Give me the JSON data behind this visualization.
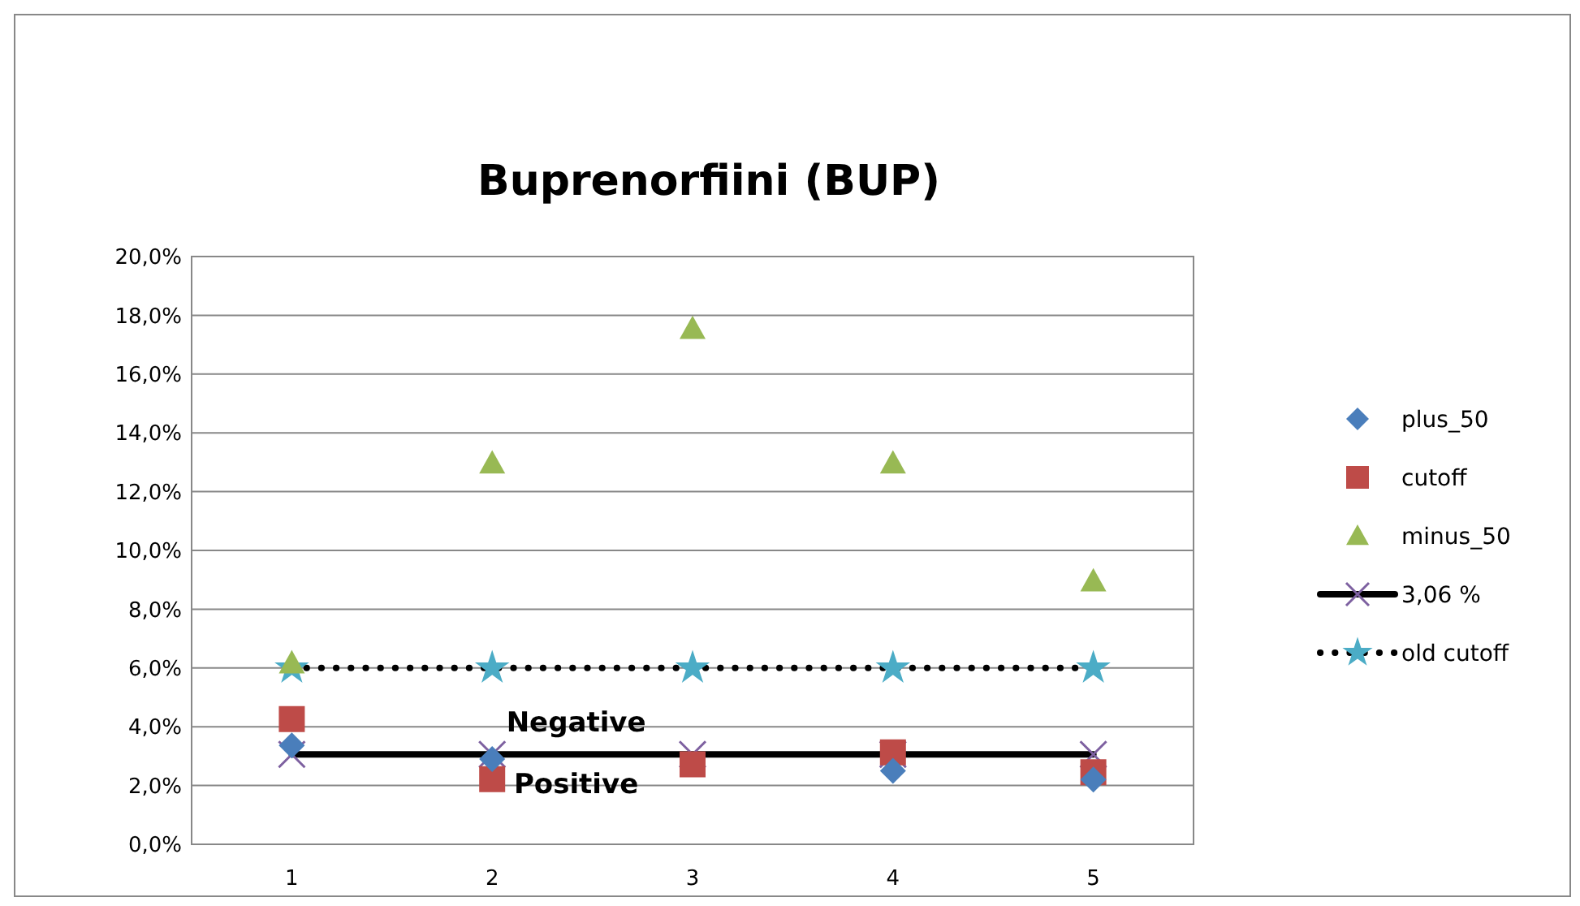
{
  "chart_data": {
    "type": "scatter",
    "title": "Buprenorfiini (BUP)",
    "categories": [
      "1",
      "2",
      "3",
      "4",
      "5"
    ],
    "series": [
      {
        "name": "plus_50",
        "color": "#4a7ebb",
        "marker": "diamond",
        "values": [
          3.36,
          2.9,
          null,
          2.5,
          2.2
        ]
      },
      {
        "name": "cutoff",
        "color": "#be4b48",
        "marker": "square",
        "values": [
          4.26,
          2.22,
          2.72,
          3.13,
          2.45
        ]
      },
      {
        "name": "minus_50",
        "color": "#98b954",
        "marker": "triangle",
        "values": [
          6.17,
          12.97,
          17.55,
          12.97,
          8.96
        ]
      },
      {
        "name": "3,06 %",
        "type": "line",
        "color": "#000000",
        "colors": [
          "#7d60a0",
          "#7d60a0",
          "#7d60a0",
          "#7d60a0",
          "#7d60a0"
        ],
        "marker": "cross",
        "line_style": "solid",
        "values": [
          3.06,
          3.06,
          3.06,
          3.06,
          3.06
        ]
      },
      {
        "name": "old cutoff",
        "type": "line",
        "color": "#000000",
        "colors": [
          "#4bacc6",
          "#4bacc6",
          "#4bacc6",
          "#4bacc6",
          "#4bacc6"
        ],
        "marker": "star",
        "line_style": "dotted",
        "values": [
          6.0,
          6.0,
          6.0,
          6.0,
          6.0
        ]
      }
    ],
    "ylim": [
      0,
      20
    ],
    "yticks": [
      {
        "value": 0,
        "label": "0,0%"
      },
      {
        "value": 2,
        "label": "2,0%"
      },
      {
        "value": 4,
        "label": "4,0%"
      },
      {
        "value": 6,
        "label": "6,0%"
      },
      {
        "value": 8,
        "label": "8,0%"
      },
      {
        "value": 10,
        "label": "10,0%"
      },
      {
        "value": 12,
        "label": "12,0%"
      },
      {
        "value": 14,
        "label": "14,0%"
      },
      {
        "value": 16,
        "label": "16,0%"
      },
      {
        "value": 18,
        "label": "18,0%"
      },
      {
        "value": 20,
        "label": "20,0%"
      }
    ],
    "grid": "y",
    "legend": "right",
    "annotations": [
      "Negative",
      "Positive"
    ]
  }
}
